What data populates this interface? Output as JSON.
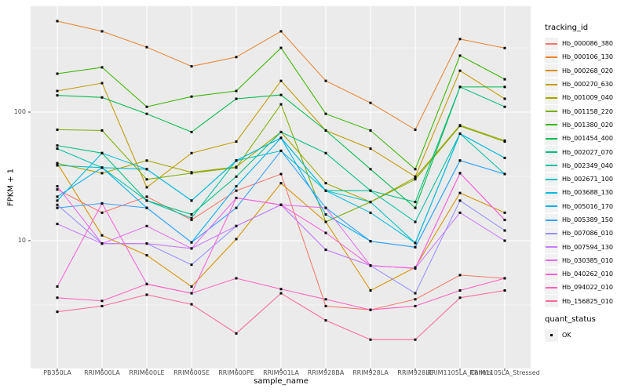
{
  "figure": {
    "background": "#FFFFFF",
    "panel_background": "#EBEBEB",
    "grid_color": "#FFFFFF",
    "axis_text_color": "#4D4D4D",
    "axis_title_color": "#000000",
    "tick_mark_color": "#333333",
    "point_color": "#000000"
  },
  "axes": {
    "y_title": "FPKM + 1",
    "x_title": "sample_name",
    "y_tick_labels": [
      "100",
      "10"
    ],
    "y_tick_values": [
      100,
      10
    ]
  },
  "legend": {
    "tracking_title": "tracking_id",
    "quant_title": "quant_status",
    "quant_items": [
      {
        "label": "OK",
        "marker": "black-square"
      }
    ]
  },
  "chart_data": {
    "type": "line",
    "title": "",
    "xlabel": "sample_name",
    "ylabel": "FPKM + 1",
    "y_scale": "log10",
    "ylim": [
      1,
      660
    ],
    "grid": true,
    "legend_position": "right",
    "point_marker": "square",
    "categories": [
      "PB350LA",
      "RRIM600LA",
      "RRIM600LE",
      "RRIM600SE",
      "RRIM600PE",
      "RRIM901LA",
      "RRIM928BA",
      "RRIM928LA",
      "RRIM928LE",
      "RRIM1105LA_Control",
      "RRIM1105LA_Stressed"
    ],
    "series": [
      {
        "name": "Hb_000086_380",
        "color": "#F8766D",
        "values": [
          25,
          16.5,
          22,
          14.5,
          24.5,
          33,
          3.1,
          2.9,
          3.5,
          5.4,
          5.1
        ]
      },
      {
        "name": "Hb_000106_130",
        "color": "#EA8331",
        "values": [
          510,
          425,
          320,
          227,
          268,
          425,
          175,
          118,
          73,
          370,
          315
        ]
      },
      {
        "name": "Hb_000268_020",
        "color": "#D89000",
        "values": [
          40,
          11,
          7.7,
          4.4,
          10.3,
          28,
          14,
          4.1,
          6.2,
          23.5,
          16.5
        ]
      },
      {
        "name": "Hb_000270_630",
        "color": "#C09B00",
        "values": [
          146,
          168,
          26,
          48,
          59,
          175,
          72,
          52,
          31.5,
          210,
          127
        ]
      },
      {
        "name": "Hb_001009_040",
        "color": "#A3A500",
        "values": [
          40,
          33.5,
          42,
          34,
          37.5,
          70,
          28,
          20,
          31,
          79,
          60
        ]
      },
      {
        "name": "Hb_001158_220",
        "color": "#7CAE00",
        "values": [
          73,
          72,
          30,
          33.5,
          37,
          115,
          14,
          20,
          30,
          78,
          59
        ]
      },
      {
        "name": "Hb_001380_020",
        "color": "#39B600",
        "values": [
          199,
          223,
          110,
          132,
          146,
          316,
          97,
          72,
          36,
          275,
          180
        ]
      },
      {
        "name": "Hb_001454_400",
        "color": "#00BB4E",
        "values": [
          135,
          130,
          97,
          70,
          127,
          136,
          72,
          36,
          18,
          157,
          157
        ]
      },
      {
        "name": "Hb_002027_070",
        "color": "#00BF7D",
        "values": [
          55,
          48,
          20.5,
          16,
          31.5,
          70,
          48,
          24.5,
          20,
          157,
          110
        ]
      },
      {
        "name": "Hb_002349_040",
        "color": "#00C1A3",
        "values": [
          52,
          37,
          20.5,
          15,
          42,
          63,
          24.5,
          24.5,
          14,
          68,
          33
        ]
      },
      {
        "name": "Hb_002671_100",
        "color": "#00BFC4",
        "values": [
          38.5,
          37,
          36,
          20.5,
          42,
          50,
          24.5,
          20,
          9.6,
          68,
          44
        ]
      },
      {
        "name": "Hb_003688_130",
        "color": "#00BAE0",
        "values": [
          20.5,
          48,
          36,
          20.5,
          42,
          63,
          24.5,
          16.5,
          9.6,
          68,
          44
        ]
      },
      {
        "name": "Hb_005016_170",
        "color": "#00B0F6",
        "values": [
          22,
          37,
          18,
          9.7,
          26.5,
          63,
          16,
          9.9,
          8.9,
          42,
          33
        ]
      },
      {
        "name": "Hb_005389_150",
        "color": "#35A2FF",
        "values": [
          18,
          19.5,
          18,
          9.7,
          18,
          50,
          18,
          9.9,
          8.9,
          42,
          33
        ]
      },
      {
        "name": "Hb_007086_010",
        "color": "#9590FF",
        "values": [
          19,
          9.5,
          9.5,
          6.5,
          13,
          19,
          8.5,
          6.4,
          3.9,
          20.5,
          12
        ]
      },
      {
        "name": "Hb_007594_130",
        "color": "#C77CFF",
        "values": [
          13.5,
          9.5,
          9.5,
          8.7,
          13,
          19,
          8.5,
          6.4,
          6.1,
          16.5,
          10
        ]
      },
      {
        "name": "Hb_030385_010",
        "color": "#E76BF3",
        "values": [
          26.5,
          9.5,
          13,
          8.7,
          21.5,
          19,
          18,
          6.4,
          6.1,
          33.5,
          14.5
        ]
      },
      {
        "name": "Hb_040262_010",
        "color": "#FA62DB",
        "values": [
          4.4,
          19.5,
          4.6,
          3.9,
          21.5,
          19,
          11.5,
          6.4,
          6.1,
          33.5,
          14.5
        ]
      },
      {
        "name": "Hb_094022_010",
        "color": "#FF62BC",
        "values": [
          3.6,
          3.4,
          4.6,
          3.9,
          5.1,
          4.2,
          3.5,
          2.9,
          3.1,
          4.1,
          5.1
        ]
      },
      {
        "name": "Hb_156825_010",
        "color": "#FF6A98",
        "values": [
          2.8,
          3.1,
          3.8,
          3.2,
          1.9,
          3.9,
          2.4,
          1.7,
          1.7,
          3.6,
          4.1
        ]
      }
    ]
  }
}
